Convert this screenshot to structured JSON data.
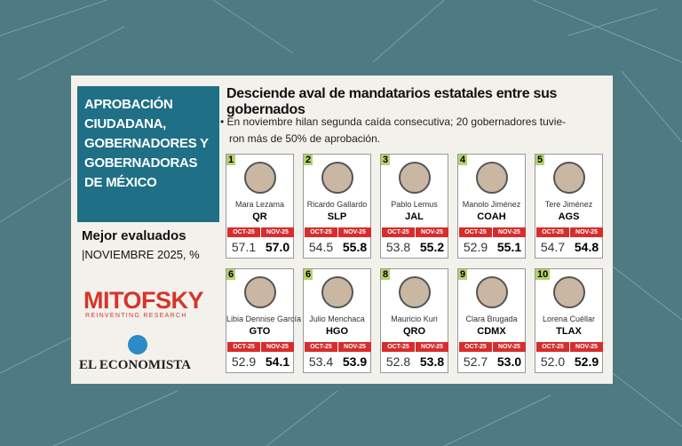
{
  "sidebar": {
    "title_lines": [
      "APROBACIÓN",
      "CIUDADANA,",
      "GOBERNADORES Y",
      "GOBERNADORAS",
      "DE MÉXICO"
    ],
    "subtitle": "Mejor evaluados",
    "period": "|NOVIEMBRE 2025, %",
    "brand": "MITOFSKY",
    "brand_tagline": "REINVENTING RESEARCH",
    "publisher": "EL ECONOMISTA"
  },
  "header": {
    "title": "Desciende aval de mandatarios estatales entre sus gobernados",
    "note_lines": [
      "En noviembre hilan segunda caída consecutiva; 20 gobernadores tuvie-",
      "ron más de 50% de aprobación."
    ]
  },
  "column_labels": [
    "OCT-25",
    "NOV-25"
  ],
  "governors": [
    {
      "rank": 1,
      "name": "Mara Lezama",
      "state": "QR",
      "oct": "57.1",
      "nov": "57.0"
    },
    {
      "rank": 2,
      "name": "Ricardo Gallardo",
      "state": "SLP",
      "oct": "54.5",
      "nov": "55.8"
    },
    {
      "rank": 3,
      "name": "Pablo Lemus",
      "state": "JAL",
      "oct": "53.8",
      "nov": "55.2"
    },
    {
      "rank": 4,
      "name": "Manolo Jiménez",
      "state": "COAH",
      "oct": "52.9",
      "nov": "55.1"
    },
    {
      "rank": 5,
      "name": "Tere Jiménez",
      "state": "AGS",
      "oct": "54.7",
      "nov": "54.8"
    },
    {
      "rank": 6,
      "name": "Libia Dennise García",
      "state": "GTO",
      "oct": "52.9",
      "nov": "54.1"
    },
    {
      "rank": 6,
      "name": "Julio Menchaca",
      "state": "HGO",
      "oct": "53.4",
      "nov": "53.9"
    },
    {
      "rank": 8,
      "name": "Mauricio Kuri",
      "state": "QRO",
      "oct": "52.8",
      "nov": "53.8"
    },
    {
      "rank": 9,
      "name": "Clara Brugada",
      "state": "CDMX",
      "oct": "52.7",
      "nov": "53.0"
    },
    {
      "rank": 10,
      "name": "Lorena Cuéllar",
      "state": "TLAX",
      "oct": "52.0",
      "nov": "52.9"
    }
  ]
}
